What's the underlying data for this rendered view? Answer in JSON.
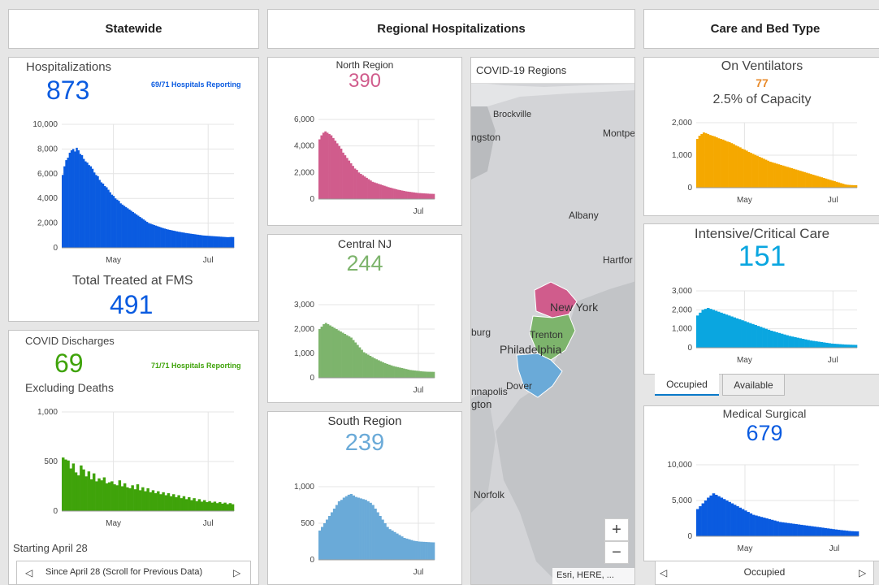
{
  "headers": {
    "statewide": "Statewide",
    "regional": "Regional Hospitalizations",
    "care": "Care and Bed Type"
  },
  "hosp": {
    "title": "Hospitalizations",
    "value": "873",
    "reporting": "69/71 Hospitals Reporting",
    "fms_label": "Total Treated at FMS",
    "fms_value": "491",
    "chart": {
      "type": "bar",
      "yticks": [
        "10,000",
        "8,000",
        "6,000",
        "4,000",
        "2,000",
        "0"
      ],
      "ymax": 10000,
      "xticks": [
        "May",
        "Jul"
      ],
      "series": [
        {
          "name": "Hospitalizations",
          "values": [
            5900,
            6600,
            7100,
            7300,
            7700,
            7900,
            8000,
            7800,
            8100,
            7900,
            7600,
            7500,
            7200,
            7000,
            6900,
            6700,
            6600,
            6400,
            6100,
            5900,
            5800,
            5500,
            5300,
            5200,
            5000,
            4900,
            4700,
            4500,
            4300,
            4200,
            4000,
            3900,
            3800,
            3600,
            3500,
            3400,
            3300,
            3200,
            3100,
            3000,
            2900,
            2800,
            2700,
            2600,
            2500,
            2400,
            2300,
            2200,
            2100,
            2000,
            1950,
            1900,
            1850,
            1800,
            1750,
            1700,
            1650,
            1600,
            1560,
            1520,
            1480,
            1450,
            1420,
            1390,
            1360,
            1330,
            1300,
            1280,
            1250,
            1230,
            1200,
            1180,
            1160,
            1140,
            1120,
            1100,
            1080,
            1060,
            1040,
            1020,
            1000,
            990,
            980,
            970,
            960,
            950,
            940,
            930,
            920,
            910,
            900,
            890,
            880,
            870,
            860,
            870,
            880,
            873
          ]
        }
      ],
      "color": "#0a5be0"
    }
  },
  "discharges": {
    "title": "COVID Discharges",
    "value": "69",
    "reporting": "71/71 Hospitals Reporting",
    "subtitle": "Excluding Deaths",
    "footer": "Starting April 28",
    "scroll_label": "Since April 28 (Scroll for Previous Data)",
    "chart": {
      "type": "bar",
      "yticks": [
        "1,000",
        "500",
        "0"
      ],
      "ymax": 1000,
      "xticks": [
        "May",
        "Jul"
      ],
      "series": [
        {
          "name": "Discharges",
          "values": [
            540,
            520,
            510,
            430,
            480,
            390,
            360,
            460,
            420,
            350,
            400,
            320,
            380,
            300,
            330,
            310,
            340,
            280,
            290,
            300,
            270,
            260,
            310,
            250,
            280,
            240,
            230,
            260,
            220,
            270,
            210,
            240,
            200,
            230,
            190,
            210,
            180,
            200,
            170,
            190,
            160,
            180,
            150,
            170,
            140,
            160,
            130,
            150,
            120,
            140,
            110,
            130,
            100,
            120,
            95,
            110,
            90,
            100,
            85,
            95,
            80,
            90,
            75,
            85,
            70,
            80,
            69
          ]
        }
      ],
      "color": "#3fa30a"
    }
  },
  "north": {
    "title": "North Region",
    "value": "390",
    "chart": {
      "type": "area",
      "yticks": [
        "6,000",
        "4,000",
        "2,000",
        "0"
      ],
      "ymax": 6000,
      "xticks": [
        "Jul"
      ],
      "series": [
        {
          "name": "North",
          "values": [
            4500,
            4800,
            5000,
            5100,
            5000,
            4900,
            4800,
            4600,
            4400,
            4200,
            4000,
            3800,
            3500,
            3300,
            3100,
            2900,
            2700,
            2500,
            2300,
            2200,
            2000,
            1900,
            1800,
            1700,
            1600,
            1500,
            1400,
            1300,
            1250,
            1200,
            1150,
            1100,
            1050,
            1000,
            950,
            900,
            860,
            820,
            780,
            740,
            700,
            670,
            640,
            610,
            580,
            560,
            540,
            520,
            500,
            480,
            460,
            450,
            440,
            430,
            420,
            410,
            400,
            395,
            390
          ]
        }
      ],
      "color": "#d05c8c"
    }
  },
  "central": {
    "title": "Central NJ",
    "value": "244",
    "chart": {
      "type": "area",
      "yticks": [
        "3,000",
        "2,000",
        "1,000",
        "0"
      ],
      "ymax": 3000,
      "xticks": [
        "Jul"
      ],
      "series": [
        {
          "name": "Central",
          "values": [
            2000,
            2100,
            2200,
            2250,
            2200,
            2150,
            2100,
            2050,
            2000,
            1950,
            1900,
            1850,
            1800,
            1750,
            1700,
            1650,
            1550,
            1450,
            1350,
            1250,
            1150,
            1050,
            1000,
            950,
            900,
            850,
            800,
            760,
            720,
            680,
            640,
            600,
            570,
            540,
            510,
            480,
            460,
            440,
            420,
            400,
            380,
            360,
            340,
            320,
            310,
            300,
            290,
            280,
            270,
            260,
            255,
            250,
            248,
            246,
            244
          ]
        }
      ],
      "color": "#7db46c"
    }
  },
  "south": {
    "title": "South Region",
    "value": "239",
    "chart": {
      "type": "area",
      "yticks": [
        "1,000",
        "500",
        "0"
      ],
      "ymax": 1000,
      "xticks": [
        "Jul"
      ],
      "series": [
        {
          "name": "South",
          "values": [
            400,
            450,
            500,
            550,
            600,
            650,
            700,
            750,
            800,
            820,
            850,
            870,
            890,
            900,
            880,
            860,
            850,
            840,
            830,
            820,
            800,
            780,
            750,
            700,
            650,
            600,
            550,
            500,
            450,
            420,
            400,
            380,
            360,
            340,
            320,
            300,
            290,
            280,
            270,
            260,
            255,
            250,
            248,
            246,
            244,
            242,
            240,
            239
          ]
        }
      ],
      "color": "#6aaad8"
    }
  },
  "map": {
    "title": "COVID-19 Regions",
    "attribution": "Esri, HERE, ...",
    "zoom_in": "+",
    "zoom_out": "−",
    "places": [
      "Brockville",
      "ngston",
      "Montpe",
      "Albany",
      "Hartfor",
      "New York",
      "burg",
      "Trenton",
      "Philadelphia",
      "Dover",
      "nnapolis",
      "gton",
      "Norfolk"
    ]
  },
  "ventilators": {
    "title": "On Ventilators",
    "value": "77",
    "capacity": "2.5% of Capacity",
    "chart": {
      "type": "bar",
      "yticks": [
        "2,000",
        "1,000",
        "0"
      ],
      "ymax": 2000,
      "xticks": [
        "May",
        "Jul"
      ],
      "series": [
        {
          "name": "Ventilators",
          "values": [
            1500,
            1600,
            1650,
            1700,
            1680,
            1650,
            1620,
            1600,
            1580,
            1550,
            1520,
            1500,
            1480,
            1450,
            1420,
            1400,
            1370,
            1340,
            1300,
            1270,
            1240,
            1200,
            1170,
            1140,
            1100,
            1070,
            1040,
            1010,
            980,
            950,
            920,
            890,
            860,
            830,
            800,
            780,
            760,
            740,
            720,
            700,
            680,
            660,
            640,
            620,
            600,
            580,
            560,
            540,
            520,
            500,
            480,
            460,
            440,
            420,
            400,
            380,
            360,
            340,
            320,
            300,
            280,
            260,
            240,
            220,
            200,
            180,
            160,
            140,
            120,
            100,
            90,
            85,
            80,
            78,
            77
          ]
        }
      ],
      "color": "#f5a800"
    }
  },
  "icu": {
    "title": "Intensive/Critical Care",
    "value": "151",
    "chart": {
      "type": "bar",
      "yticks": [
        "3,000",
        "2,000",
        "1,000",
        "0"
      ],
      "ymax": 3000,
      "xticks": [
        "May",
        "Jul"
      ],
      "series": [
        {
          "name": "ICU",
          "values": [
            1700,
            1850,
            2000,
            2050,
            2100,
            2050,
            2000,
            1950,
            1900,
            1850,
            1800,
            1750,
            1700,
            1650,
            1600,
            1550,
            1500,
            1450,
            1400,
            1350,
            1300,
            1250,
            1200,
            1150,
            1100,
            1050,
            1000,
            950,
            900,
            860,
            820,
            780,
            740,
            700,
            660,
            620,
            590,
            560,
            530,
            500,
            470,
            440,
            410,
            380,
            360,
            340,
            320,
            300,
            280,
            260,
            240,
            220,
            210,
            200,
            190,
            180,
            170,
            165,
            160,
            155,
            151
          ]
        }
      ],
      "color": "#0aa6e0"
    },
    "tabs": {
      "occupied": "Occupied",
      "available": "Available"
    }
  },
  "medsurg": {
    "title": "Medical Surgical",
    "value": "679",
    "footer": "Occupied",
    "chart": {
      "type": "bar",
      "yticks": [
        "10,000",
        "5,000",
        "0"
      ],
      "ymax": 10000,
      "xticks": [
        "May",
        "Jul"
      ],
      "series": [
        {
          "name": "MedSurg",
          "values": [
            3800,
            4200,
            4600,
            5000,
            5400,
            5700,
            6000,
            5800,
            5600,
            5400,
            5200,
            5000,
            4800,
            4600,
            4400,
            4200,
            4000,
            3800,
            3600,
            3400,
            3200,
            3000,
            2900,
            2800,
            2700,
            2600,
            2500,
            2400,
            2300,
            2200,
            2100,
            2000,
            1950,
            1900,
            1850,
            1800,
            1750,
            1700,
            1650,
            1600,
            1550,
            1500,
            1450,
            1400,
            1350,
            1300,
            1250,
            1200,
            1150,
            1100,
            1050,
            1000,
            950,
            900,
            860,
            820,
            780,
            740,
            710,
            690,
            679
          ]
        }
      ],
      "color": "#0a5be0"
    }
  },
  "colors": {
    "blue": "#0a5be0",
    "green": "#3fa30a",
    "pink": "#d05c8c",
    "lightgreen": "#7db46c",
    "lightblue": "#6aaad8",
    "orange": "#f5a800",
    "cyan": "#0aa6e0",
    "orange_text": "#e88a2a"
  }
}
